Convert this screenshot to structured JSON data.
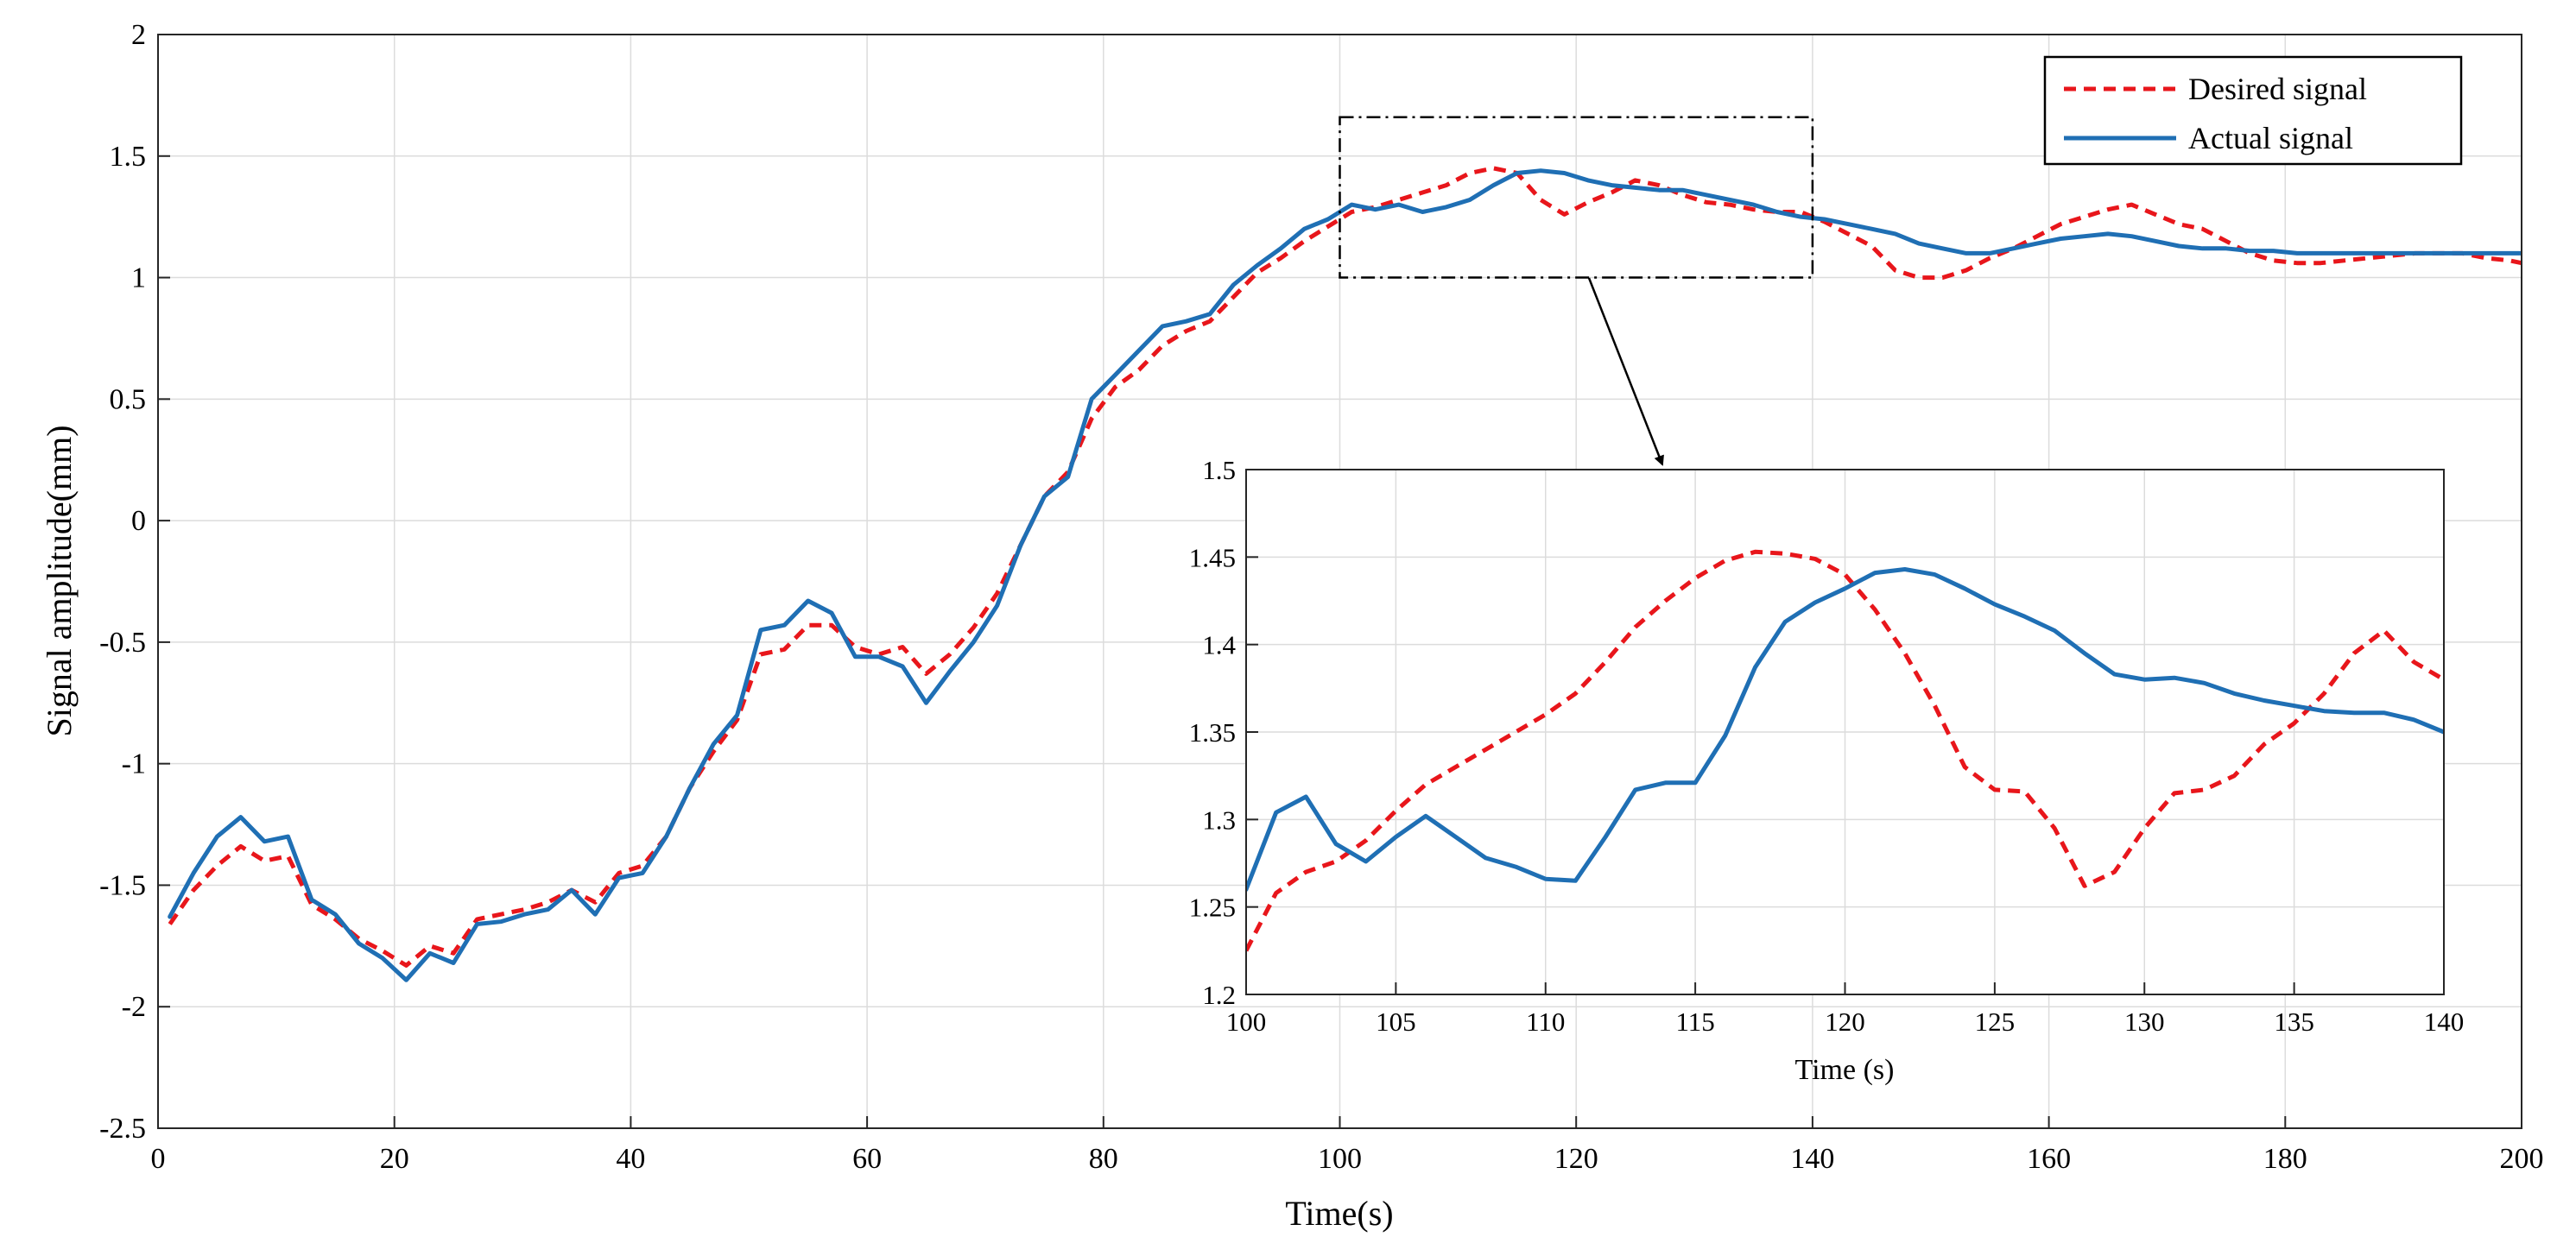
{
  "chart_data": {
    "type": "line",
    "main": {
      "xlabel": "Time(s)",
      "ylabel": "Signal amplitude(mm)",
      "xlim": [
        0,
        200
      ],
      "ylim": [
        -2.5,
        2
      ],
      "xticks": [
        0,
        20,
        40,
        60,
        80,
        100,
        120,
        140,
        160,
        180,
        200
      ],
      "yticks": [
        -2.5,
        -2,
        -1.5,
        -1,
        -0.5,
        0,
        0.5,
        1,
        1.5,
        2
      ],
      "xtick_labels": [
        "0",
        "20",
        "40",
        "60",
        "80",
        "100",
        "120",
        "140",
        "160",
        "180",
        "200"
      ],
      "ytick_labels": [
        "-2.5",
        "-2",
        "-1.5",
        "-1",
        "-0.5",
        "0",
        "0.5",
        "1",
        "1.5",
        "2"
      ],
      "grid": true,
      "legend_position": "top-right"
    },
    "legend": [
      {
        "label": "Desired signal",
        "series": "desired"
      },
      {
        "label": "Actual signal",
        "series": "actual"
      }
    ],
    "series": [
      {
        "name": "Desired signal",
        "key": "desired",
        "color": "#e8161b",
        "style": "dashed",
        "x": [
          1,
          3,
          5,
          7,
          9,
          11,
          13,
          15,
          17,
          19,
          21,
          23,
          25,
          27,
          29,
          31,
          33,
          35,
          37,
          39,
          41,
          43,
          45,
          47,
          49,
          51,
          53,
          55,
          57,
          59,
          61,
          63,
          65,
          67,
          69,
          71,
          73,
          75,
          77,
          79,
          81,
          83,
          85,
          87,
          89,
          91,
          93,
          95,
          97,
          99,
          101,
          103,
          105,
          107,
          109,
          111,
          113,
          115,
          117,
          119,
          121,
          123,
          125,
          127,
          129,
          131,
          133,
          135,
          137,
          139,
          141,
          143,
          145,
          147,
          149,
          151,
          153,
          155,
          157,
          159,
          161,
          163,
          165,
          167,
          169,
          171,
          173,
          175,
          177,
          179,
          181,
          183,
          185,
          187,
          189,
          191,
          193,
          195,
          197,
          199,
          200
        ],
        "y": [
          -1.66,
          -1.52,
          -1.42,
          -1.34,
          -1.4,
          -1.38,
          -1.58,
          -1.64,
          -1.72,
          -1.77,
          -1.83,
          -1.75,
          -1.78,
          -1.64,
          -1.62,
          -1.6,
          -1.57,
          -1.52,
          -1.57,
          -1.45,
          -1.42,
          -1.3,
          -1.1,
          -0.95,
          -0.82,
          -0.55,
          -0.53,
          -0.43,
          -0.43,
          -0.52,
          -0.55,
          -0.52,
          -0.63,
          -0.55,
          -0.44,
          -0.3,
          -0.1,
          0.1,
          0.2,
          0.42,
          0.55,
          0.62,
          0.72,
          0.78,
          0.82,
          0.92,
          1.02,
          1.08,
          1.15,
          1.21,
          1.27,
          1.29,
          1.32,
          1.35,
          1.38,
          1.43,
          1.45,
          1.43,
          1.32,
          1.26,
          1.31,
          1.35,
          1.4,
          1.38,
          1.34,
          1.31,
          1.3,
          1.28,
          1.27,
          1.27,
          1.23,
          1.18,
          1.13,
          1.03,
          1.0,
          1.0,
          1.03,
          1.08,
          1.12,
          1.17,
          1.22,
          1.25,
          1.28,
          1.3,
          1.26,
          1.22,
          1.2,
          1.15,
          1.1,
          1.07,
          1.06,
          1.06,
          1.07,
          1.08,
          1.09,
          1.1,
          1.1,
          1.1,
          1.08,
          1.07,
          1.06
        ]
      },
      {
        "name": "Actual signal",
        "key": "actual",
        "color": "#1f6fb4",
        "style": "solid",
        "x": [
          1,
          3,
          5,
          7,
          9,
          11,
          13,
          15,
          17,
          19,
          21,
          23,
          25,
          27,
          29,
          31,
          33,
          35,
          37,
          39,
          41,
          43,
          45,
          47,
          49,
          51,
          53,
          55,
          57,
          59,
          61,
          63,
          65,
          67,
          69,
          71,
          73,
          75,
          77,
          79,
          81,
          83,
          85,
          87,
          89,
          91,
          93,
          95,
          97,
          99,
          101,
          103,
          105,
          107,
          109,
          111,
          113,
          115,
          117,
          119,
          121,
          123,
          125,
          127,
          129,
          131,
          133,
          135,
          137,
          139,
          141,
          143,
          145,
          147,
          149,
          151,
          153,
          155,
          157,
          159,
          161,
          163,
          165,
          167,
          169,
          171,
          173,
          175,
          177,
          179,
          181,
          183,
          185,
          187,
          189,
          191,
          193,
          195,
          197,
          199,
          200
        ],
        "y": [
          -1.63,
          -1.45,
          -1.3,
          -1.22,
          -1.32,
          -1.3,
          -1.56,
          -1.62,
          -1.74,
          -1.8,
          -1.89,
          -1.78,
          -1.82,
          -1.66,
          -1.65,
          -1.62,
          -1.6,
          -1.52,
          -1.62,
          -1.47,
          -1.45,
          -1.3,
          -1.1,
          -0.92,
          -0.8,
          -0.45,
          -0.43,
          -0.33,
          -0.38,
          -0.56,
          -0.56,
          -0.6,
          -0.75,
          -0.62,
          -0.5,
          -0.35,
          -0.1,
          0.1,
          0.18,
          0.5,
          0.6,
          0.7,
          0.8,
          0.82,
          0.85,
          0.97,
          1.05,
          1.12,
          1.2,
          1.24,
          1.3,
          1.28,
          1.3,
          1.27,
          1.29,
          1.32,
          1.38,
          1.43,
          1.44,
          1.43,
          1.4,
          1.38,
          1.37,
          1.36,
          1.36,
          1.34,
          1.32,
          1.3,
          1.27,
          1.25,
          1.24,
          1.22,
          1.2,
          1.18,
          1.14,
          1.12,
          1.1,
          1.1,
          1.12,
          1.14,
          1.16,
          1.17,
          1.18,
          1.17,
          1.15,
          1.13,
          1.12,
          1.12,
          1.11,
          1.11,
          1.1,
          1.1,
          1.1,
          1.1,
          1.1,
          1.1,
          1.1,
          1.1,
          1.1,
          1.1,
          1.1
        ]
      }
    ],
    "zoom_box": {
      "x": [
        100,
        140
      ],
      "y": [
        1,
        1.66
      ]
    },
    "inset": {
      "xlabel": "Time (s)",
      "xlim": [
        100,
        140
      ],
      "ylim": [
        1.2,
        1.5
      ],
      "xticks": [
        100,
        105,
        110,
        115,
        120,
        125,
        130,
        135,
        140
      ],
      "yticks": [
        1.2,
        1.25,
        1.3,
        1.35,
        1.4,
        1.45,
        1.5
      ],
      "xtick_labels": [
        "100",
        "105",
        "110",
        "115",
        "120",
        "125",
        "130",
        "135",
        "140"
      ],
      "ytick_labels": [
        "1.2",
        "1.25",
        "1.3",
        "1.35",
        "1.4",
        "1.45",
        "1.5"
      ],
      "grid": true,
      "series": [
        {
          "key": "desired",
          "x": [
            100,
            101,
            102,
            103,
            104,
            105,
            106,
            107,
            108,
            109,
            110,
            111,
            112,
            113,
            114,
            115,
            116,
            117,
            118,
            119,
            120,
            121,
            122,
            123,
            124,
            125,
            126,
            127,
            128,
            129,
            130,
            131,
            132,
            133,
            134,
            135,
            136,
            137,
            138,
            139,
            140
          ],
          "y": [
            1.225,
            1.258,
            1.27,
            1.276,
            1.288,
            1.305,
            1.32,
            1.33,
            1.34,
            1.35,
            1.36,
            1.372,
            1.39,
            1.41,
            1.425,
            1.438,
            1.448,
            1.453,
            1.452,
            1.449,
            1.44,
            1.42,
            1.395,
            1.365,
            1.33,
            1.317,
            1.316,
            1.295,
            1.262,
            1.27,
            1.295,
            1.315,
            1.317,
            1.325,
            1.343,
            1.355,
            1.372,
            1.395,
            1.408,
            1.39,
            1.38
          ]
        },
        {
          "key": "actual",
          "x": [
            100,
            101,
            102,
            103,
            104,
            105,
            106,
            107,
            108,
            109,
            110,
            111,
            112,
            113,
            114,
            115,
            116,
            117,
            118,
            119,
            120,
            121,
            122,
            123,
            124,
            125,
            126,
            127,
            128,
            129,
            130,
            131,
            132,
            133,
            134,
            135,
            136,
            137,
            138,
            139,
            140
          ],
          "y": [
            1.26,
            1.304,
            1.313,
            1.286,
            1.276,
            1.29,
            1.302,
            1.29,
            1.278,
            1.273,
            1.266,
            1.265,
            1.29,
            1.317,
            1.321,
            1.321,
            1.348,
            1.387,
            1.413,
            1.424,
            1.432,
            1.441,
            1.443,
            1.44,
            1.432,
            1.423,
            1.416,
            1.408,
            1.395,
            1.383,
            1.38,
            1.381,
            1.378,
            1.372,
            1.368,
            1.365,
            1.362,
            1.361,
            1.361,
            1.357,
            1.35
          ]
        }
      ]
    }
  }
}
